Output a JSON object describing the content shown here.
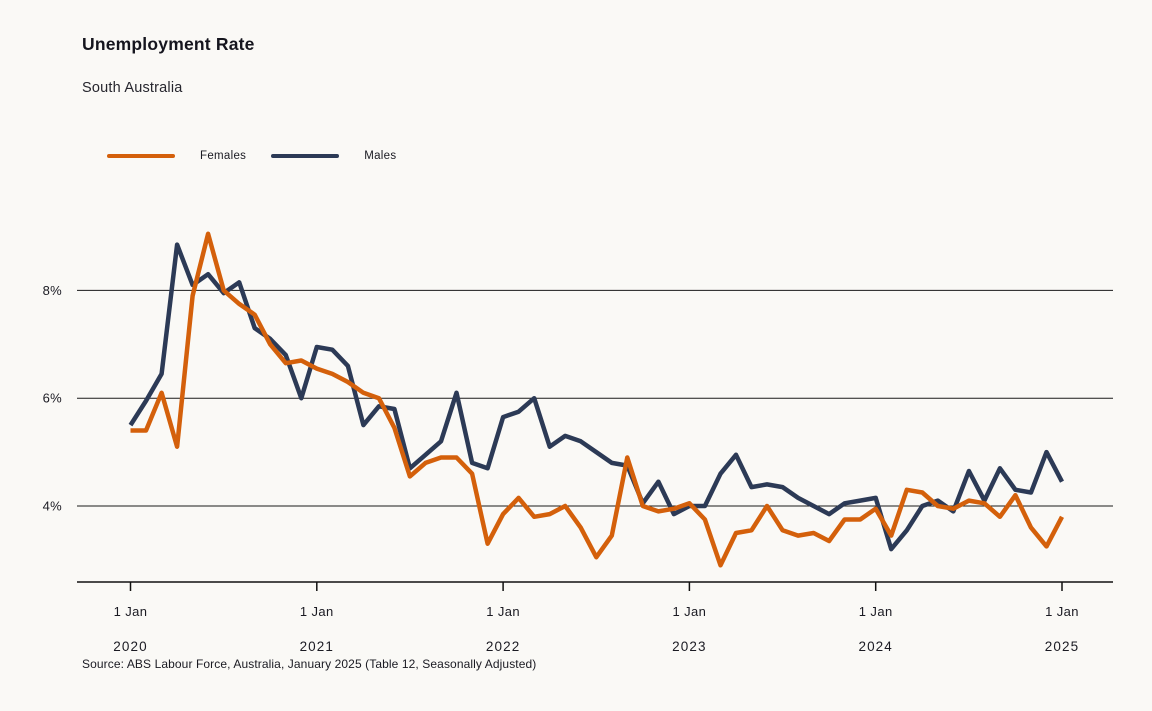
{
  "header": {
    "title": "Unemployment Rate",
    "subtitle": "South Australia"
  },
  "legend": {
    "items": [
      {
        "label": "Females",
        "color": "#d4600b"
      },
      {
        "label": "Males",
        "color": "#2c3a56"
      }
    ]
  },
  "footer": {
    "source": "Source: ABS Labour Force, Australia, January 2025 (Table 12, Seasonally Adjusted)"
  },
  "colors": {
    "background": "#faf9f6",
    "gridline": "#1a1a1a",
    "axis": "#111111",
    "females": "#d4600b",
    "males": "#2c3a56"
  },
  "chart_data": {
    "type": "line",
    "title": "Unemployment Rate",
    "subtitle": "South Australia",
    "unit": "percent",
    "x_start": "Jan 2020",
    "x_end": "Jan 2025",
    "x_interval": "monthly",
    "x_tick_label_top": "1 Jan",
    "x_tick_years": [
      "2020",
      "2021",
      "2022",
      "2023",
      "2024",
      "2025"
    ],
    "y_ticks": [
      {
        "label": "8%",
        "value": 8
      },
      {
        "label": "6%",
        "value": 6
      },
      {
        "label": "4%",
        "value": 4
      }
    ],
    "ylim": [
      2.6,
      9.6
    ],
    "grid": "horizontal-only",
    "legend_position": "top-left",
    "series": [
      {
        "name": "Females",
        "color": "#d4600b",
        "values": [
          5.4,
          5.4,
          6.1,
          5.1,
          7.9,
          9.05,
          8.0,
          7.75,
          7.55,
          7.0,
          6.65,
          6.7,
          6.55,
          6.45,
          6.3,
          6.1,
          6.0,
          5.45,
          4.55,
          4.8,
          4.9,
          4.9,
          4.6,
          3.3,
          3.85,
          4.15,
          3.8,
          3.85,
          4.0,
          3.6,
          3.05,
          3.45,
          4.9,
          4.0,
          3.9,
          3.95,
          4.05,
          3.75,
          2.9,
          3.5,
          3.55,
          4.0,
          3.55,
          3.45,
          3.5,
          3.35,
          3.75,
          3.75,
          3.95,
          3.45,
          4.3,
          4.25,
          4.0,
          3.95,
          4.1,
          4.05,
          3.8,
          4.2,
          3.6,
          3.25,
          3.8
        ]
      },
      {
        "name": "Males",
        "color": "#2c3a56",
        "values": [
          5.5,
          5.95,
          6.45,
          8.85,
          8.1,
          8.3,
          7.95,
          8.15,
          7.3,
          7.1,
          6.8,
          6.0,
          6.95,
          6.9,
          6.6,
          5.5,
          5.85,
          5.8,
          4.7,
          4.95,
          5.2,
          6.1,
          4.8,
          4.7,
          5.65,
          5.75,
          6.0,
          5.1,
          5.3,
          5.2,
          5.0,
          4.8,
          4.75,
          4.05,
          4.45,
          3.85,
          4.0,
          4.0,
          4.6,
          4.95,
          4.35,
          4.4,
          4.35,
          4.15,
          4.0,
          3.85,
          4.05,
          4.1,
          4.15,
          3.2,
          3.55,
          4.0,
          4.1,
          3.9,
          4.65,
          4.1,
          4.7,
          4.3,
          4.25,
          5.0,
          4.45
        ]
      }
    ]
  }
}
